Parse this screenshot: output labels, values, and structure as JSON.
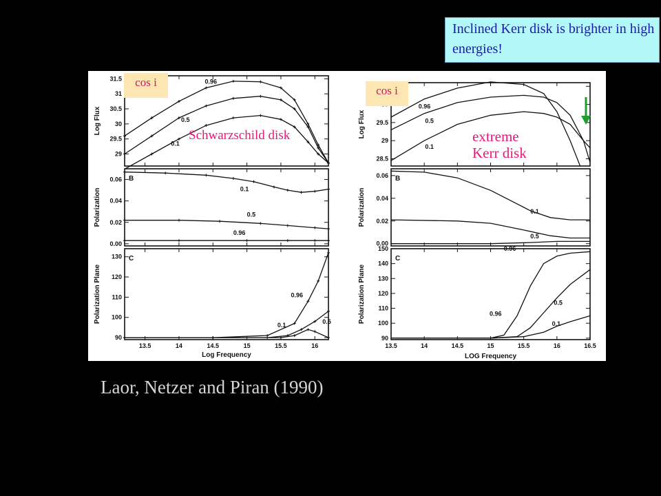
{
  "callout_text": "Inclined Kerr disk is brighter in high energies!",
  "cos_label_left": "cos i",
  "cos_label_right": "cos i",
  "schwarzschild_label": "Schwarzschild disk",
  "kerr_label_line1": "extreme",
  "kerr_label_line2": "Kerr disk",
  "caption": "Laor, Netzer and Piran (1990)",
  "colors": {
    "callout_bg": "#b4f7f9",
    "callout_text": "#1a1aa8",
    "tag_bg": "#fce6b2",
    "tag_text": "#cc1a66",
    "label_pink": "#e8187a",
    "arrow": "#1e9e2c",
    "caption": "#d6d6d6"
  },
  "arrow_icon": "down-arrow-icon",
  "chart_data": [
    {
      "id": "left",
      "type": "line",
      "x_range": [
        13.2,
        16.2
      ],
      "x_ticks": [
        13.5,
        14,
        14.5,
        15,
        15.5,
        16
      ],
      "xlabel": "Log Frequency",
      "panels": [
        {
          "letter": "",
          "ylabel": "Log Flux",
          "ylim": [
            28.6,
            31.6
          ],
          "y_ticks": [
            29.0,
            29.5,
            30.0,
            30.5,
            31.0,
            31.5
          ],
          "series": [
            {
              "name": "0.96",
              "label": "0.96",
              "x": [
                13.2,
                13.6,
                14.0,
                14.4,
                14.8,
                15.2,
                15.5,
                15.7,
                15.9,
                16.05,
                16.2
              ],
              "y": [
                29.6,
                30.2,
                30.75,
                31.2,
                31.42,
                31.4,
                31.2,
                30.8,
                30.0,
                29.3,
                28.7
              ]
            },
            {
              "name": "0.5",
              "label": "0.5",
              "x": [
                13.2,
                13.6,
                14.0,
                14.4,
                14.8,
                15.2,
                15.5,
                15.7,
                15.9,
                16.05,
                16.2
              ],
              "y": [
                29.0,
                29.6,
                30.2,
                30.6,
                30.85,
                30.92,
                30.8,
                30.5,
                29.9,
                29.2,
                28.7
              ]
            },
            {
              "name": "0.1",
              "label": "0.1",
              "x": [
                13.2,
                13.6,
                14.0,
                14.4,
                14.8,
                15.2,
                15.5,
                15.7,
                15.9,
                16.05,
                16.2
              ],
              "y": [
                28.5,
                29.0,
                29.5,
                29.95,
                30.2,
                30.28,
                30.15,
                29.9,
                29.4,
                29.0,
                28.7
              ]
            }
          ]
        },
        {
          "letter": "B",
          "ylabel": "Polarization",
          "ylim": [
            -0.002,
            0.07
          ],
          "y_ticks": [
            0.0,
            0.02,
            0.04,
            0.06
          ],
          "series": [
            {
              "name": "0.1",
              "label": "0.1",
              "x": [
                13.2,
                13.8,
                14.4,
                14.8,
                15.1,
                15.4,
                15.6,
                15.8,
                16.0,
                16.2
              ],
              "y": [
                0.067,
                0.066,
                0.064,
                0.061,
                0.058,
                0.053,
                0.05,
                0.048,
                0.049,
                0.051
              ]
            },
            {
              "name": "0.5",
              "label": "0.5",
              "x": [
                13.2,
                14.0,
                14.6,
                15.2,
                15.6,
                16.0,
                16.2
              ],
              "y": [
                0.022,
                0.022,
                0.021,
                0.019,
                0.017,
                0.015,
                0.014
              ]
            },
            {
              "name": "0.96",
              "label": "0.96",
              "x": [
                13.2,
                14.0,
                15.0,
                15.6,
                16.0,
                16.2
              ],
              "y": [
                0.003,
                0.003,
                0.003,
                0.003,
                0.003,
                0.003
              ]
            }
          ]
        },
        {
          "letter": "C",
          "ylabel": "Polarization Plane",
          "ylim": [
            89,
            134
          ],
          "y_ticks": [
            90,
            100,
            110,
            120,
            130
          ],
          "series": [
            {
              "name": "0.96",
              "label": "0.96",
              "x": [
                13.2,
                14.5,
                15.3,
                15.7,
                15.9,
                16.05,
                16.2
              ],
              "y": [
                90,
                90,
                91,
                97,
                108,
                118,
                132
              ]
            },
            {
              "name": "0.5",
              "label": "0.5",
              "x": [
                13.2,
                14.5,
                15.3,
                15.6,
                15.8,
                16.0,
                16.2
              ],
              "y": [
                90,
                90,
                90,
                91,
                94,
                98,
                103
              ]
            },
            {
              "name": "0.1",
              "label": "0.1",
              "x": [
                13.2,
                14.5,
                15.5,
                15.7,
                15.9,
                16.0,
                16.2
              ],
              "y": [
                90,
                90,
                90,
                91,
                94,
                93,
                90
              ]
            }
          ]
        }
      ]
    },
    {
      "id": "right",
      "type": "line",
      "x_range": [
        13.5,
        16.5
      ],
      "x_ticks": [
        13.5,
        14,
        14.5,
        15,
        15.5,
        16,
        16.5
      ],
      "xlabel": "LOG Frequency",
      "panels": [
        {
          "letter": "",
          "ylabel": "Log Flux",
          "ylim": [
            28.3,
            30.6
          ],
          "y_ticks": [
            28.5,
            29.0,
            29.5,
            30.0,
            30.5
          ],
          "series": [
            {
              "name": "0.96",
              "label": "0.96",
              "x": [
                13.5,
                14.0,
                14.5,
                15.0,
                15.5,
                15.8,
                16.0,
                16.2,
                16.35
              ],
              "y": [
                29.65,
                30.15,
                30.45,
                30.62,
                30.55,
                30.3,
                29.8,
                29.0,
                28.3
              ]
            },
            {
              "name": "0.5",
              "label": "0.5",
              "x": [
                13.5,
                14.0,
                14.5,
                15.0,
                15.5,
                15.8,
                16.0,
                16.2,
                16.4,
                16.5
              ],
              "y": [
                29.3,
                29.75,
                30.05,
                30.2,
                30.25,
                30.2,
                30.05,
                29.7,
                29.0,
                28.4
              ]
            },
            {
              "name": "0.1",
              "label": "0.1",
              "x": [
                13.5,
                14.0,
                14.5,
                15.0,
                15.5,
                15.8,
                16.0,
                16.2,
                16.4,
                16.5
              ],
              "y": [
                28.45,
                29.0,
                29.45,
                29.7,
                29.8,
                29.75,
                29.65,
                29.45,
                29.0,
                28.8
              ]
            }
          ]
        },
        {
          "letter": "B",
          "ylabel": "Polarization",
          "ylim": [
            -0.002,
            0.066
          ],
          "y_ticks": [
            0.0,
            0.02,
            0.04,
            0.06
          ],
          "series": [
            {
              "name": "0.1",
              "label": "0.1",
              "x": [
                13.5,
                14.0,
                14.5,
                15.0,
                15.3,
                15.6,
                15.9,
                16.2,
                16.5
              ],
              "y": [
                0.064,
                0.063,
                0.058,
                0.047,
                0.038,
                0.029,
                0.023,
                0.021,
                0.021
              ]
            },
            {
              "name": "0.5",
              "label": "0.5",
              "x": [
                13.5,
                14.5,
                15.0,
                15.5,
                15.9,
                16.2,
                16.5
              ],
              "y": [
                0.021,
                0.02,
                0.018,
                0.012,
                0.007,
                0.005,
                0.005
              ]
            },
            {
              "name": "0.96",
              "label": "0.96",
              "x": [
                13.5,
                15.0,
                15.6,
                16.0,
                16.5
              ],
              "y": [
                0.0,
                0.0,
                0.001,
                0.002,
                0.002
              ]
            }
          ]
        },
        {
          "letter": "C",
          "ylabel": "Polarization Plane",
          "ylim": [
            89,
            150
          ],
          "y_ticks": [
            90,
            100,
            110,
            120,
            130,
            140,
            150
          ],
          "series": [
            {
              "name": "0.96",
              "label": "0.96",
              "x": [
                13.5,
                15.0,
                15.2,
                15.4,
                15.6,
                15.8,
                16.0,
                16.2,
                16.5
              ],
              "y": [
                90,
                90,
                92,
                105,
                125,
                140,
                145,
                147,
                148
              ]
            },
            {
              "name": "0.5",
              "label": "0.5",
              "x": [
                13.5,
                15.0,
                15.4,
                15.6,
                15.8,
                16.0,
                16.2,
                16.5
              ],
              "y": [
                90,
                90,
                91,
                97,
                107,
                117,
                126,
                136
              ]
            },
            {
              "name": "0.1",
              "label": "0.1",
              "x": [
                13.5,
                15.0,
                15.5,
                15.8,
                16.0,
                16.2,
                16.5
              ],
              "y": [
                90,
                90,
                91,
                94,
                98,
                101,
                105
              ]
            }
          ]
        }
      ]
    }
  ]
}
